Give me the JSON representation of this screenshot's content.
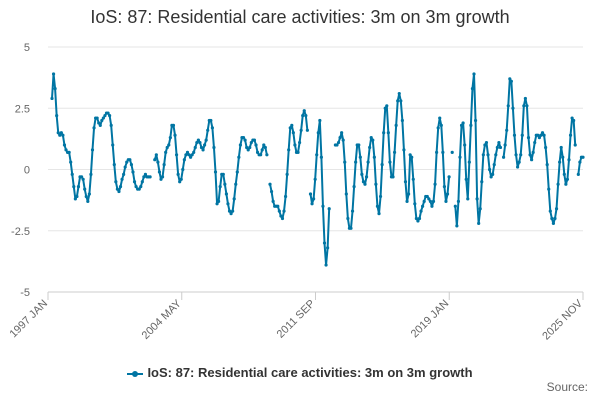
{
  "chart_data": {
    "type": "line",
    "title": "IoS: 87: Residential care activities: 3m on 3m growth",
    "xlabel": "",
    "ylabel": "",
    "ylim": [
      -5,
      5
    ],
    "y_ticks": [
      5,
      2.5,
      0,
      -2.5,
      -5
    ],
    "y_tick_labels": [
      "5",
      "2.5",
      "0",
      "-2.5",
      "-5"
    ],
    "x_tick_labels": [
      "1997 JAN",
      "2004 MAY",
      "2011 SEP",
      "2019 JAN",
      "2025 NOV"
    ],
    "x_start": "1997 JAN",
    "x_end": "2025 NOV",
    "grid": true,
    "legend_position": "bottom",
    "credits": "Source:",
    "series": [
      {
        "name": "IoS: 87: Residential care activities: 3m on 3m growth",
        "color": "#0075a3",
        "values": [
          2.9,
          3.9,
          3.3,
          2.2,
          1.5,
          1.4,
          1.5,
          1.4,
          1.0,
          0.8,
          0.7,
          0.7,
          0.3,
          -0.2,
          -0.7,
          -1.2,
          -1.1,
          -0.7,
          -0.3,
          -0.3,
          -0.4,
          -0.8,
          -1.1,
          -1.3,
          -1.0,
          -0.2,
          0.8,
          1.7,
          2.1,
          2.1,
          1.9,
          1.8,
          2.0,
          2.1,
          2.2,
          2.3,
          2.3,
          2.2,
          1.8,
          1.0,
          0.2,
          -0.5,
          -0.8,
          -0.9,
          -0.7,
          -0.4,
          -0.2,
          0.1,
          0.3,
          0.4,
          0.4,
          0.2,
          -0.1,
          -0.5,
          -0.7,
          -0.8,
          -0.8,
          -0.7,
          -0.5,
          -0.3,
          -0.2,
          -0.3,
          -0.3,
          -0.3,
          null,
          null,
          0.4,
          0.6,
          0.3,
          -0.1,
          -0.4,
          -0.3,
          0.2,
          0.7,
          0.9,
          1.0,
          1.3,
          1.8,
          1.8,
          1.4,
          0.6,
          -0.2,
          -0.5,
          -0.4,
          0.0,
          0.4,
          0.6,
          0.7,
          0.6,
          0.5,
          0.6,
          0.7,
          0.9,
          1.1,
          1.2,
          1.1,
          0.9,
          0.8,
          1.0,
          1.2,
          1.6,
          2.0,
          2.0,
          1.7,
          0.9,
          -0.1,
          -1.4,
          -1.3,
          -0.7,
          -0.2,
          -0.2,
          -0.6,
          -1.0,
          -1.4,
          -1.7,
          -1.8,
          -1.7,
          -1.2,
          -0.6,
          -0.1,
          0.5,
          1.0,
          1.3,
          1.3,
          1.2,
          0.9,
          0.8,
          0.9,
          1.1,
          1.2,
          1.2,
          1.0,
          0.7,
          0.6,
          0.6,
          0.8,
          1.0,
          0.9,
          0.6,
          null,
          -0.6,
          -0.9,
          -1.3,
          -1.5,
          -1.5,
          -1.5,
          -1.7,
          -1.9,
          -2.0,
          -1.7,
          -1.1,
          -0.2,
          0.8,
          1.7,
          1.8,
          1.5,
          1.0,
          0.7,
          0.7,
          1.1,
          1.6,
          2.2,
          2.4,
          2.2,
          1.6,
          null,
          -1.0,
          -1.4,
          -1.2,
          -0.4,
          0.6,
          1.5,
          2.0,
          0.5,
          -1.5,
          -3.0,
          -3.9,
          -3.2,
          -1.6,
          null,
          null,
          null,
          1.0,
          1.0,
          1.1,
          1.3,
          1.5,
          1.2,
          0.3,
          -1.0,
          -2.0,
          -2.4,
          -2.4,
          -1.7,
          -0.7,
          0.3,
          1.0,
          1.0,
          0.5,
          -0.2,
          -0.5,
          -0.6,
          -0.3,
          0.3,
          0.9,
          1.3,
          1.2,
          0.5,
          -0.6,
          -1.5,
          -1.8,
          -1.1,
          0.2,
          1.5,
          2.5,
          2.6,
          1.5,
          0.3,
          -0.3,
          -0.3,
          0.7,
          1.8,
          2.8,
          3.1,
          2.8,
          2.0,
          0.8,
          -0.5,
          -1.3,
          -1.0,
          0.6,
          0.5,
          -0.4,
          -1.4,
          -2.0,
          -2.1,
          -2.0,
          -1.7,
          -1.5,
          -1.3,
          -1.1,
          -1.1,
          -1.2,
          -1.3,
          -1.5,
          -1.3,
          -0.6,
          0.7,
          1.7,
          2.1,
          1.8,
          0.7,
          -0.7,
          -1.3,
          -1.0,
          -0.3,
          null,
          0.7,
          null,
          -1.5,
          -2.3,
          -1.3,
          0.5,
          1.8,
          1.9,
          1.0,
          -0.4,
          -1.2,
          0.3,
          1.8,
          3.3,
          3.9,
          2.0,
          -1.2,
          -2.2,
          -1.6,
          -0.5,
          0.6,
          1.0,
          1.1,
          0.6,
          0.0,
          -0.3,
          -0.2,
          0.2,
          0.6,
          0.9,
          1.1,
          0.9,
          null,
          0.5,
          1.0,
          1.6,
          2.6,
          3.7,
          3.6,
          2.5,
          1.4,
          0.6,
          0.1,
          0.3,
          0.6,
          1.4,
          2.6,
          2.9,
          2.6,
          1.3,
          0.6,
          0.4,
          0.7,
          1.1,
          1.4,
          1.4,
          1.3,
          1.4,
          1.5,
          1.4,
          0.9,
          0.2,
          -0.8,
          -1.7,
          -2.0,
          -2.2,
          -2.0,
          -1.6,
          -0.6,
          0.3,
          0.9,
          0.5,
          -0.2,
          -0.6,
          -0.4,
          0.4,
          1.4,
          2.1,
          2.0,
          1.0,
          null,
          -0.2,
          0.3,
          0.5,
          0.5
        ]
      }
    ]
  }
}
